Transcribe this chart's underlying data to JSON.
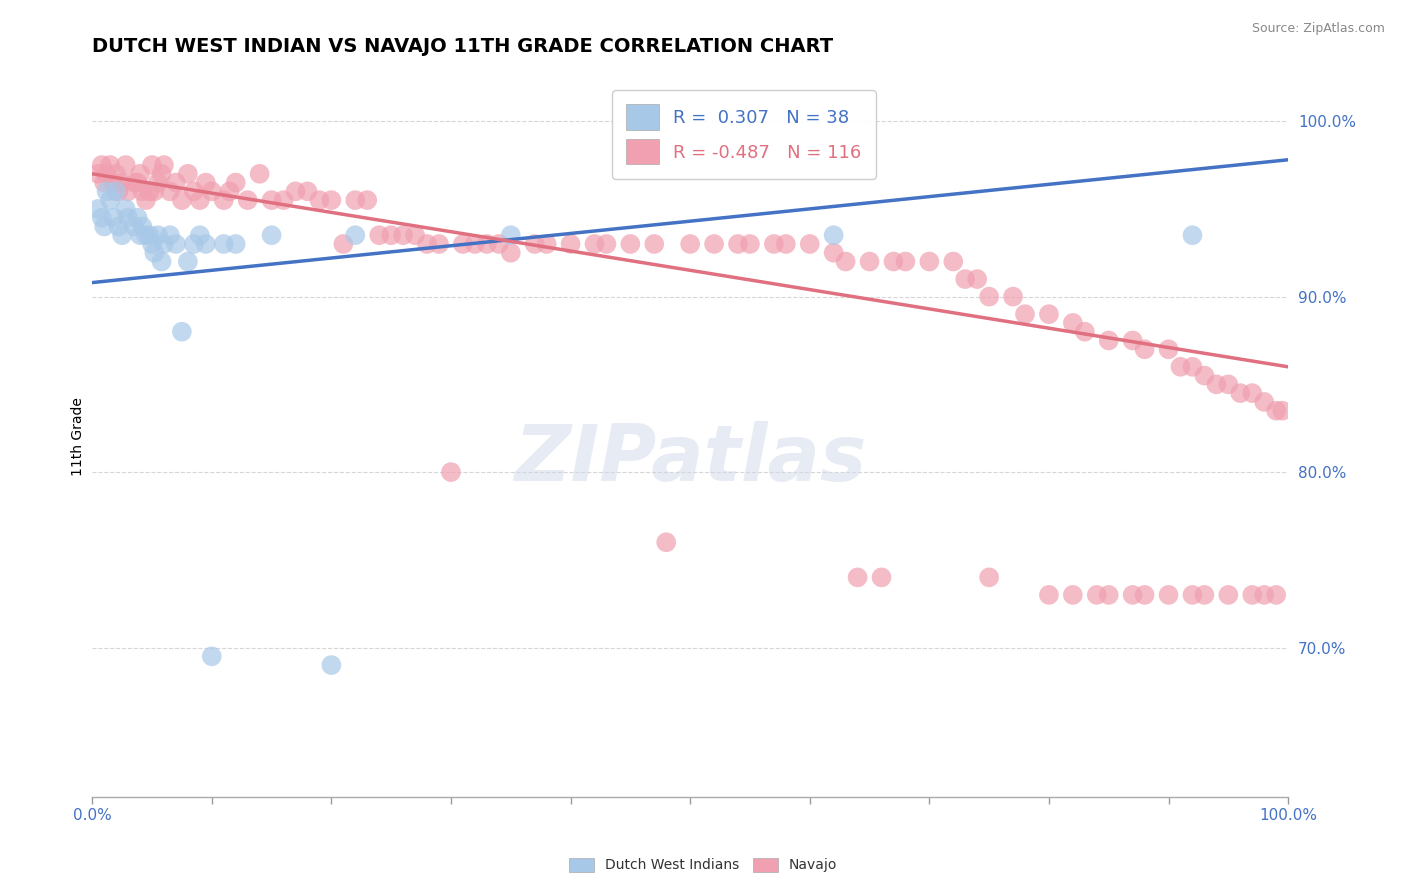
{
  "title": "DUTCH WEST INDIAN VS NAVAJO 11TH GRADE CORRELATION CHART",
  "source": "Source: ZipAtlas.com",
  "ylabel": "11th Grade",
  "y_ticks_labels": [
    "70.0%",
    "80.0%",
    "90.0%",
    "100.0%"
  ],
  "y_tick_vals": [
    0.7,
    0.8,
    0.9,
    1.0
  ],
  "x_lim": [
    0.0,
    1.0
  ],
  "y_lim": [
    0.615,
    1.025
  ],
  "legend_label_1": "Dutch West Indians",
  "legend_label_2": "Navajo",
  "blue_scatter_x": [
    0.005,
    0.008,
    0.01,
    0.012,
    0.015,
    0.018,
    0.02,
    0.022,
    0.025,
    0.028,
    0.03,
    0.035,
    0.038,
    0.04,
    0.042,
    0.045,
    0.048,
    0.05,
    0.052,
    0.055,
    0.058,
    0.06,
    0.065,
    0.07,
    0.075,
    0.08,
    0.085,
    0.09,
    0.095,
    0.1,
    0.11,
    0.12,
    0.15,
    0.2,
    0.22,
    0.35,
    0.62,
    0.92
  ],
  "blue_scatter_y": [
    0.95,
    0.945,
    0.94,
    0.96,
    0.955,
    0.945,
    0.96,
    0.94,
    0.935,
    0.95,
    0.945,
    0.94,
    0.945,
    0.935,
    0.94,
    0.935,
    0.935,
    0.93,
    0.925,
    0.935,
    0.92,
    0.93,
    0.935,
    0.93,
    0.88,
    0.92,
    0.93,
    0.935,
    0.93,
    0.695,
    0.93,
    0.93,
    0.935,
    0.69,
    0.935,
    0.935,
    0.935,
    0.935
  ],
  "pink_scatter_x": [
    0.005,
    0.008,
    0.01,
    0.012,
    0.015,
    0.018,
    0.02,
    0.022,
    0.025,
    0.028,
    0.03,
    0.035,
    0.038,
    0.04,
    0.042,
    0.045,
    0.048,
    0.05,
    0.052,
    0.055,
    0.058,
    0.06,
    0.065,
    0.07,
    0.075,
    0.08,
    0.085,
    0.09,
    0.095,
    0.1,
    0.11,
    0.115,
    0.12,
    0.13,
    0.14,
    0.15,
    0.16,
    0.17,
    0.18,
    0.19,
    0.2,
    0.21,
    0.22,
    0.23,
    0.24,
    0.25,
    0.26,
    0.27,
    0.28,
    0.29,
    0.3,
    0.31,
    0.32,
    0.33,
    0.34,
    0.35,
    0.37,
    0.38,
    0.4,
    0.42,
    0.43,
    0.45,
    0.47,
    0.48,
    0.5,
    0.52,
    0.54,
    0.55,
    0.57,
    0.58,
    0.6,
    0.62,
    0.63,
    0.65,
    0.67,
    0.68,
    0.7,
    0.72,
    0.73,
    0.74,
    0.75,
    0.77,
    0.78,
    0.8,
    0.82,
    0.83,
    0.85,
    0.87,
    0.88,
    0.9,
    0.91,
    0.92,
    0.93,
    0.94,
    0.95,
    0.96,
    0.97,
    0.98,
    0.99,
    0.995,
    0.64,
    0.66,
    0.75,
    0.8,
    0.82,
    0.84,
    0.85,
    0.87,
    0.88,
    0.9,
    0.92,
    0.93,
    0.95,
    0.97,
    0.98,
    0.99
  ],
  "pink_scatter_y": [
    0.97,
    0.975,
    0.965,
    0.97,
    0.975,
    0.965,
    0.97,
    0.96,
    0.965,
    0.975,
    0.96,
    0.965,
    0.965,
    0.97,
    0.96,
    0.955,
    0.96,
    0.975,
    0.96,
    0.965,
    0.97,
    0.975,
    0.96,
    0.965,
    0.955,
    0.97,
    0.96,
    0.955,
    0.965,
    0.96,
    0.955,
    0.96,
    0.965,
    0.955,
    0.97,
    0.955,
    0.955,
    0.96,
    0.96,
    0.955,
    0.955,
    0.93,
    0.955,
    0.955,
    0.935,
    0.935,
    0.935,
    0.935,
    0.93,
    0.93,
    0.8,
    0.93,
    0.93,
    0.93,
    0.93,
    0.925,
    0.93,
    0.93,
    0.93,
    0.93,
    0.93,
    0.93,
    0.93,
    0.76,
    0.93,
    0.93,
    0.93,
    0.93,
    0.93,
    0.93,
    0.93,
    0.925,
    0.92,
    0.92,
    0.92,
    0.92,
    0.92,
    0.92,
    0.91,
    0.91,
    0.9,
    0.9,
    0.89,
    0.89,
    0.885,
    0.88,
    0.875,
    0.875,
    0.87,
    0.87,
    0.86,
    0.86,
    0.855,
    0.85,
    0.85,
    0.845,
    0.845,
    0.84,
    0.835,
    0.835,
    0.74,
    0.74,
    0.74,
    0.73,
    0.73,
    0.73,
    0.73,
    0.73,
    0.73,
    0.73,
    0.73,
    0.73,
    0.73,
    0.73,
    0.73,
    0.73
  ],
  "blue_line_x": [
    0.0,
    1.0
  ],
  "blue_line_y": [
    0.908,
    0.978
  ],
  "pink_line_x": [
    0.0,
    1.0
  ],
  "pink_line_y": [
    0.97,
    0.86
  ],
  "blue_color": "#a8c8e8",
  "pink_color": "#f0a0b0",
  "blue_line_color": "#4472c4",
  "pink_line_color": "#e07080",
  "grid_color": "#cccccc",
  "title_fontsize": 14,
  "axis_label_fontsize": 10,
  "tick_label_color": "#4472c4",
  "watermark_text": "ZIPatlas"
}
